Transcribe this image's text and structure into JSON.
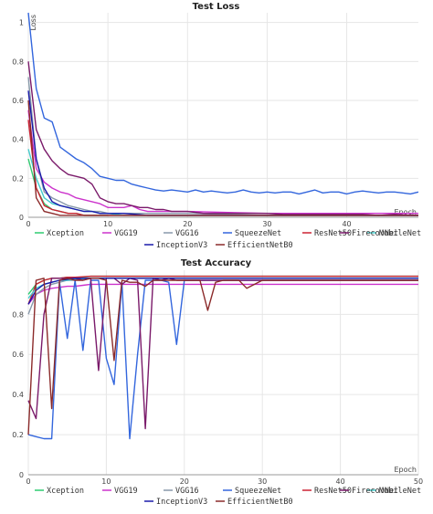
{
  "chart_data": [
    {
      "type": "line",
      "title": "Test Loss",
      "xlabel": "Epoch",
      "ylabel": "Loss",
      "xlim": [
        0,
        49
      ],
      "ylim": [
        0,
        1.05
      ],
      "xticks": [
        0,
        10,
        20,
        30,
        40
      ],
      "yticks": [
        0,
        0.2,
        0.4,
        0.6,
        0.8,
        1
      ],
      "grid": true,
      "legend_position": "bottom",
      "series": [
        {
          "name": "Xception",
          "color": "#2ecc71",
          "x": [
            0,
            1,
            2,
            3,
            4,
            5,
            6,
            7,
            8,
            9,
            10
          ],
          "y": [
            0.3,
            0.15,
            0.07,
            0.04,
            0.03,
            0.02,
            0.02,
            0.01,
            0.01,
            0.01,
            0.01
          ]
        },
        {
          "name": "VGG19",
          "color": "#cc33cc",
          "x": [
            0,
            1,
            2,
            3,
            4,
            5,
            6,
            7,
            8,
            9,
            10,
            11,
            12,
            13,
            14,
            15,
            20,
            30,
            40,
            49
          ],
          "y": [
            0.55,
            0.25,
            0.18,
            0.15,
            0.13,
            0.12,
            0.1,
            0.09,
            0.08,
            0.07,
            0.05,
            0.05,
            0.05,
            0.06,
            0.04,
            0.03,
            0.03,
            0.02,
            0.02,
            0.02
          ]
        },
        {
          "name": "VGG16",
          "color": "#8899aa",
          "x": [
            0,
            1,
            2,
            3,
            4,
            5,
            6,
            7,
            8,
            9,
            10,
            12,
            15,
            20,
            30,
            40,
            49
          ],
          "y": [
            0.72,
            0.3,
            0.13,
            0.1,
            0.08,
            0.06,
            0.05,
            0.04,
            0.03,
            0.03,
            0.02,
            0.02,
            0.02,
            0.02,
            0.01,
            0.01,
            0.01
          ]
        },
        {
          "name": "SqueezeNet",
          "color": "#3366dd",
          "x": [
            0,
            1,
            2,
            3,
            4,
            5,
            6,
            7,
            8,
            9,
            10,
            11,
            12,
            13,
            14,
            15,
            16,
            17,
            18,
            19,
            20,
            21,
            22,
            23,
            24,
            25,
            26,
            27,
            28,
            29,
            30,
            31,
            32,
            33,
            34,
            35,
            36,
            37,
            38,
            39,
            40,
            41,
            42,
            43,
            44,
            45,
            46,
            47,
            48,
            49
          ],
          "y": [
            1.05,
            0.66,
            0.51,
            0.49,
            0.36,
            0.33,
            0.3,
            0.28,
            0.25,
            0.21,
            0.2,
            0.19,
            0.19,
            0.17,
            0.16,
            0.15,
            0.14,
            0.135,
            0.14,
            0.135,
            0.13,
            0.14,
            0.13,
            0.135,
            0.13,
            0.125,
            0.13,
            0.14,
            0.13,
            0.125,
            0.13,
            0.125,
            0.13,
            0.13,
            0.12,
            0.13,
            0.14,
            0.125,
            0.13,
            0.13,
            0.12,
            0.13,
            0.135,
            0.13,
            0.125,
            0.13,
            0.13,
            0.125,
            0.12,
            0.13
          ]
        },
        {
          "name": "ResNet50",
          "color": "#cc2233",
          "x": [
            0,
            1,
            2,
            3,
            4,
            5,
            6,
            7,
            8,
            10,
            15,
            20,
            30,
            40,
            49
          ],
          "y": [
            0.5,
            0.15,
            0.06,
            0.04,
            0.03,
            0.02,
            0.02,
            0.01,
            0.01,
            0.01,
            0.01,
            0.01,
            0.01,
            0.01,
            0.01
          ]
        },
        {
          "name": "MobileNet",
          "color": "#44cccc",
          "x": [
            0,
            1,
            2,
            3,
            4,
            5,
            6,
            7,
            8,
            9,
            10,
            12,
            15,
            20,
            30,
            40,
            49
          ],
          "y": [
            0.35,
            0.2,
            0.1,
            0.07,
            0.06,
            0.05,
            0.04,
            0.03,
            0.03,
            0.02,
            0.02,
            0.01,
            0.01,
            0.01,
            0.01,
            0.01,
            0.01
          ]
        },
        {
          "name": "FirecovNet",
          "color": "#7a1a6a",
          "x": [
            0,
            1,
            2,
            3,
            4,
            5,
            6,
            7,
            8,
            9,
            10,
            11,
            12,
            13,
            14,
            15,
            16,
            17,
            18,
            19,
            20,
            22,
            24,
            26,
            28,
            30,
            32,
            34,
            36,
            38,
            40,
            42,
            44,
            46,
            48,
            49
          ],
          "y": [
            0.8,
            0.45,
            0.35,
            0.29,
            0.25,
            0.22,
            0.21,
            0.2,
            0.17,
            0.1,
            0.08,
            0.07,
            0.07,
            0.06,
            0.05,
            0.05,
            0.04,
            0.04,
            0.03,
            0.03,
            0.03,
            0.02,
            0.02,
            0.02,
            0.02,
            0.02,
            0.015,
            0.015,
            0.015,
            0.015,
            0.015,
            0.015,
            0.01,
            0.015,
            0.01,
            0.01
          ]
        },
        {
          "name": "InceptionV3",
          "color": "#1a1aaa",
          "x": [
            0,
            1,
            2,
            3,
            4,
            5,
            6,
            7,
            8,
            9,
            10,
            12,
            15,
            20,
            30,
            40,
            49
          ],
          "y": [
            0.65,
            0.3,
            0.15,
            0.08,
            0.06,
            0.05,
            0.04,
            0.03,
            0.03,
            0.02,
            0.02,
            0.02,
            0.01,
            0.01,
            0.01,
            0.01,
            0.01
          ]
        },
        {
          "name": "EfficientNetB0",
          "color": "#8b2a2a",
          "x": [
            0,
            1,
            2,
            3,
            4,
            5,
            6,
            7,
            8,
            10,
            15,
            20,
            30,
            40,
            49
          ],
          "y": [
            0.6,
            0.1,
            0.03,
            0.02,
            0.01,
            0.01,
            0.01,
            0.01,
            0.01,
            0.01,
            0.01,
            0.01,
            0.01,
            0.01,
            0.01
          ]
        }
      ]
    },
    {
      "type": "line",
      "title": "Test Accuracy",
      "xlabel": "Epoch",
      "ylabel": "",
      "xlim": [
        0,
        50
      ],
      "ylim": [
        0,
        1.02
      ],
      "xticks": [
        0,
        10,
        20,
        30,
        40,
        50
      ],
      "yticks": [
        0,
        0.2,
        0.4,
        0.6,
        0.8
      ],
      "grid": true,
      "legend_position": "bottom",
      "series": [
        {
          "name": "Xception",
          "color": "#2ecc71",
          "x": [
            0,
            1,
            2,
            3,
            4,
            5,
            6,
            7,
            8,
            10,
            15,
            20,
            30,
            40,
            50
          ],
          "y": [
            0.9,
            0.95,
            0.97,
            0.98,
            0.98,
            0.985,
            0.985,
            0.985,
            0.99,
            0.99,
            0.99,
            0.99,
            0.99,
            0.99,
            0.99
          ]
        },
        {
          "name": "VGG19",
          "color": "#cc33cc",
          "x": [
            0,
            1,
            2,
            3,
            4,
            5,
            6,
            7,
            8,
            9,
            10,
            15,
            20,
            30,
            40,
            50
          ],
          "y": [
            0.85,
            0.9,
            0.92,
            0.93,
            0.935,
            0.94,
            0.94,
            0.945,
            0.95,
            0.95,
            0.95,
            0.95,
            0.95,
            0.95,
            0.95,
            0.95
          ]
        },
        {
          "name": "VGG16",
          "color": "#8899aa",
          "x": [
            0,
            1,
            2,
            3,
            4,
            5,
            6,
            7,
            8,
            10,
            15,
            20,
            30,
            40,
            50
          ],
          "y": [
            0.8,
            0.9,
            0.93,
            0.95,
            0.96,
            0.97,
            0.97,
            0.975,
            0.98,
            0.98,
            0.98,
            0.98,
            0.98,
            0.98,
            0.98
          ]
        },
        {
          "name": "SqueezeNet",
          "color": "#3366dd",
          "x": [
            0,
            1,
            2,
            3,
            4,
            5,
            6,
            7,
            8,
            9,
            10,
            11,
            12,
            13,
            14,
            15,
            16,
            17,
            18,
            19,
            20,
            21,
            22,
            25,
            30,
            35,
            40,
            45,
            50
          ],
          "y": [
            0.2,
            0.19,
            0.18,
            0.18,
            0.96,
            0.68,
            0.97,
            0.62,
            0.97,
            0.97,
            0.58,
            0.45,
            0.96,
            0.18,
            0.6,
            0.97,
            0.97,
            0.97,
            0.96,
            0.65,
            0.97,
            0.97,
            0.97,
            0.97,
            0.97,
            0.97,
            0.97,
            0.97,
            0.97
          ]
        },
        {
          "name": "ResNet50",
          "color": "#cc2233",
          "x": [
            0,
            1,
            2,
            3,
            4,
            5,
            6,
            8,
            10,
            15,
            20,
            30,
            40,
            50
          ],
          "y": [
            0.85,
            0.95,
            0.97,
            0.98,
            0.98,
            0.985,
            0.985,
            0.99,
            0.99,
            0.99,
            0.99,
            0.99,
            0.99,
            0.99
          ]
        },
        {
          "name": "MobileNet",
          "color": "#44cccc",
          "x": [
            0,
            1,
            2,
            3,
            4,
            5,
            6,
            8,
            10,
            15,
            20,
            30,
            40,
            50
          ],
          "y": [
            0.88,
            0.93,
            0.95,
            0.96,
            0.97,
            0.97,
            0.975,
            0.98,
            0.98,
            0.98,
            0.98,
            0.98,
            0.98,
            0.98
          ]
        },
        {
          "name": "FirecovNet",
          "color": "#7a1a6a",
          "x": [
            0,
            1,
            2,
            3,
            4,
            5,
            6,
            7,
            8,
            9,
            10,
            11,
            12,
            13,
            14,
            15,
            16,
            17,
            18,
            19,
            20,
            21,
            22,
            23,
            24,
            25,
            26,
            27,
            28,
            30,
            35,
            40,
            45,
            50
          ],
          "y": [
            0.37,
            0.28,
            0.8,
            0.98,
            0.98,
            0.98,
            0.98,
            0.97,
            0.98,
            0.52,
            0.98,
            0.98,
            0.95,
            0.98,
            0.97,
            0.23,
            0.98,
            0.97,
            0.98,
            0.97,
            0.97,
            0.97,
            0.97,
            0.97,
            0.97,
            0.97,
            0.97,
            0.97,
            0.97,
            0.97,
            0.97,
            0.97,
            0.97,
            0.97
          ]
        },
        {
          "name": "InceptionV3",
          "color": "#1a1aaa",
          "x": [
            0,
            1,
            2,
            3,
            4,
            5,
            6,
            8,
            10,
            15,
            20,
            30,
            40,
            50
          ],
          "y": [
            0.85,
            0.92,
            0.95,
            0.96,
            0.97,
            0.975,
            0.98,
            0.98,
            0.98,
            0.98,
            0.98,
            0.98,
            0.98,
            0.98
          ]
        },
        {
          "name": "EfficientNetB0",
          "color": "#8b2a2a",
          "x": [
            0,
            1,
            2,
            3,
            4,
            5,
            6,
            7,
            8,
            9,
            10,
            11,
            12,
            13,
            14,
            15,
            16,
            18,
            20,
            22,
            23,
            24,
            25,
            27,
            28,
            30,
            35,
            40,
            45,
            50
          ],
          "y": [
            0.2,
            0.97,
            0.98,
            0.33,
            0.97,
            0.98,
            0.97,
            0.97,
            0.98,
            0.98,
            0.97,
            0.57,
            0.97,
            0.96,
            0.96,
            0.94,
            0.97,
            0.97,
            0.97,
            0.97,
            0.82,
            0.96,
            0.97,
            0.97,
            0.93,
            0.97,
            0.97,
            0.97,
            0.97,
            0.97
          ]
        }
      ]
    }
  ]
}
